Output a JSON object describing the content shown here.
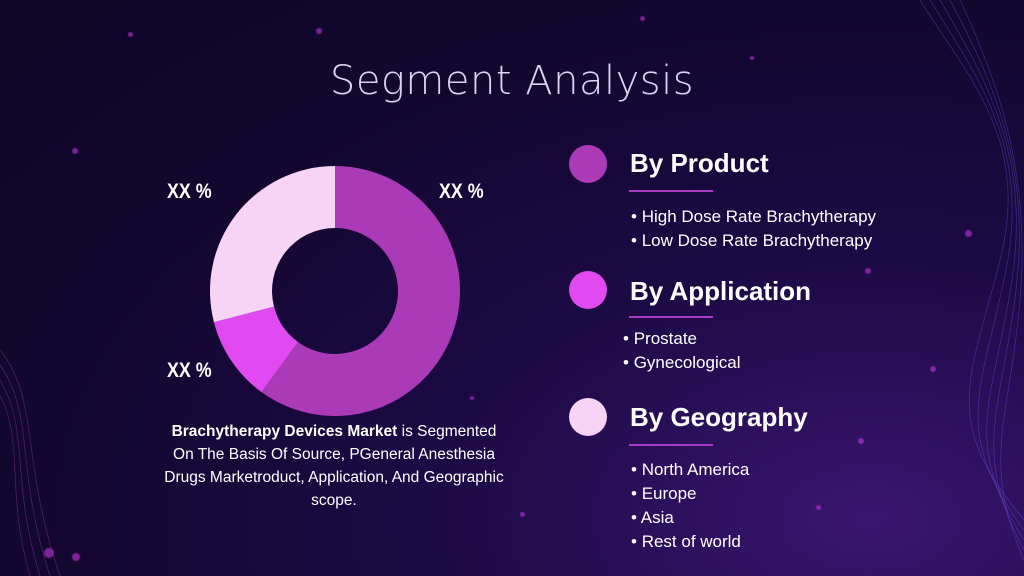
{
  "title": "Segment Analysis",
  "chart_data": {
    "type": "pie",
    "donut": true,
    "slices": [
      {
        "value": 60,
        "color": "#ab3ab8"
      },
      {
        "value": 11,
        "color": "#e14af0"
      },
      {
        "value": 29,
        "color": "#f7d4f6"
      }
    ],
    "labels": [
      "XX %",
      "XX %",
      "XX %"
    ]
  },
  "caption": {
    "bold": "Brachytherapy Devices Market",
    "rest": " is Segmented On The Basis Of Source, PGeneral Anesthesia Drugs Marketroduct, Application, And Geographic scope."
  },
  "segments": [
    {
      "title": "By Product",
      "color": "#ab3ab8",
      "items": [
        "High Dose Rate Brachytherapy",
        "Low Dose Rate Brachytherapy"
      ]
    },
    {
      "title": "By Application",
      "color": "#e14af0",
      "items": [
        "Prostate",
        "Gynecological"
      ]
    },
    {
      "title": "By Geography",
      "color": "#f7d4f6",
      "items": [
        "North America",
        "Europe",
        "Asia",
        "Rest of world"
      ]
    }
  ]
}
